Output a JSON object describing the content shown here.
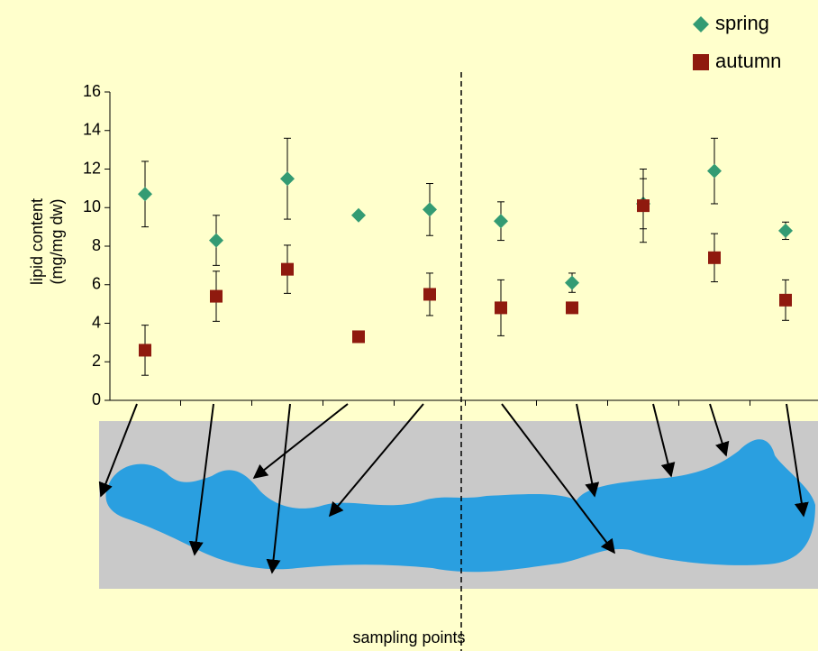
{
  "chart_data": {
    "type": "scatter",
    "ylabel": [
      "lipid content",
      "(mg/mg dw)"
    ],
    "xlabel": "sampling points",
    "categories": [
      null,
      null,
      null,
      null,
      null,
      null,
      null,
      null,
      null,
      null
    ],
    "series": [
      {
        "name": "spring",
        "color": "#339b73",
        "marker": "diamond",
        "values": [
          10.7,
          8.3,
          11.5,
          9.6,
          9.9,
          9.3,
          6.1,
          10.2,
          11.9,
          8.8
        ],
        "errors": [
          1.7,
          1.3,
          2.1,
          0.15,
          1.35,
          1.0,
          0.5,
          1.3,
          1.7,
          0.45
        ]
      },
      {
        "name": "autumn",
        "color": "#8f1a0e",
        "marker": "square",
        "values": [
          2.6,
          5.4,
          6.8,
          3.3,
          5.5,
          4.8,
          4.8,
          10.1,
          7.4,
          5.2
        ],
        "errors": [
          1.3,
          1.3,
          1.25,
          0.2,
          1.1,
          1.45,
          0.1,
          1.9,
          1.25,
          1.05
        ]
      }
    ],
    "ylim": [
      0,
      16
    ],
    "yticks": [
      0,
      2,
      4,
      6,
      8,
      10,
      12,
      14,
      16
    ],
    "grid": false,
    "legend": "top-right"
  }
}
